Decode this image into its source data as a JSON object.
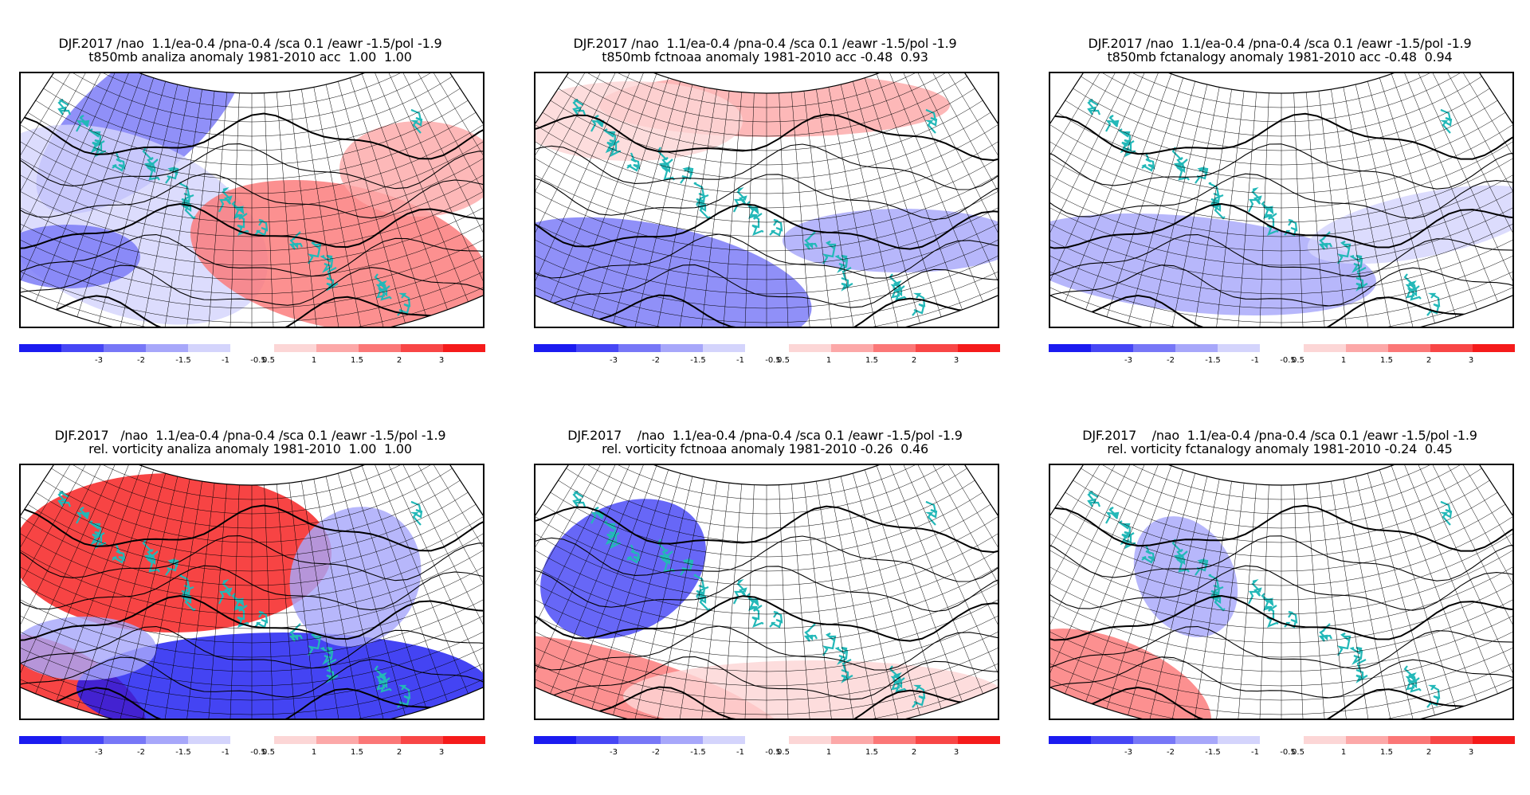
{
  "legend": {
    "ticks": [
      "-3",
      "-2",
      "-1.5",
      "-1",
      "-0.5",
      "0.5",
      "1",
      "1.5",
      "2",
      "3"
    ],
    "colors": [
      "#1b1bf0",
      "#4646f5",
      "#7777f7",
      "#a7a7fa",
      "#d4d4fc",
      "#ffffff",
      "#fcd6d6",
      "#fca8a8",
      "#fb7777",
      "#f84646",
      "#f51b1b"
    ]
  },
  "map_colors": {
    "coast": "#23b8b8",
    "grid": "#000000",
    "frame": "#000000"
  },
  "panels": [
    {
      "title1": "DJF.2017 /nao  1.1/ea-0.4 /pna-0.4 /sca 0.1 /eawr -1.5/pol -1.9",
      "title2": "t850mb analiza anomaly 1981-2010 acc  1.00  1.00",
      "pattern": "a1"
    },
    {
      "title1": "DJF.2017 /nao  1.1/ea-0.4 /pna-0.4 /sca 0.1 /eawr -1.5/pol -1.9",
      "title2": "t850mb fctnoaa anomaly 1981-2010 acc -0.48  0.93",
      "pattern": "f1"
    },
    {
      "title1": "DJF.2017 /nao  1.1/ea-0.4 /pna-0.4 /sca 0.1 /eawr -1.5/pol -1.9",
      "title2": "t850mb fctanalogy anomaly 1981-2010 acc -0.48  0.94",
      "pattern": "g1"
    },
    {
      "title1": "DJF.2017   /nao  1.1/ea-0.4 /pna-0.4 /sca 0.1 /eawr -1.5/pol -1.9",
      "title2": "rel. vorticity analiza anomaly 1981-2010  1.00  1.00",
      "pattern": "a2"
    },
    {
      "title1": "DJF.2017    /nao  1.1/ea-0.4 /pna-0.4 /sca 0.1 /eawr -1.5/pol -1.9",
      "title2": "rel. vorticity fctnoaa anomaly 1981-2010 -0.26  0.46",
      "pattern": "f2"
    },
    {
      "title1": "DJF.2017    /nao  1.1/ea-0.4 /pna-0.4 /sca 0.1 /eawr -1.5/pol -1.9",
      "title2": "rel. vorticity fctanalogy anomaly 1981-2010 -0.24  0.45",
      "pattern": "g2"
    }
  ]
}
